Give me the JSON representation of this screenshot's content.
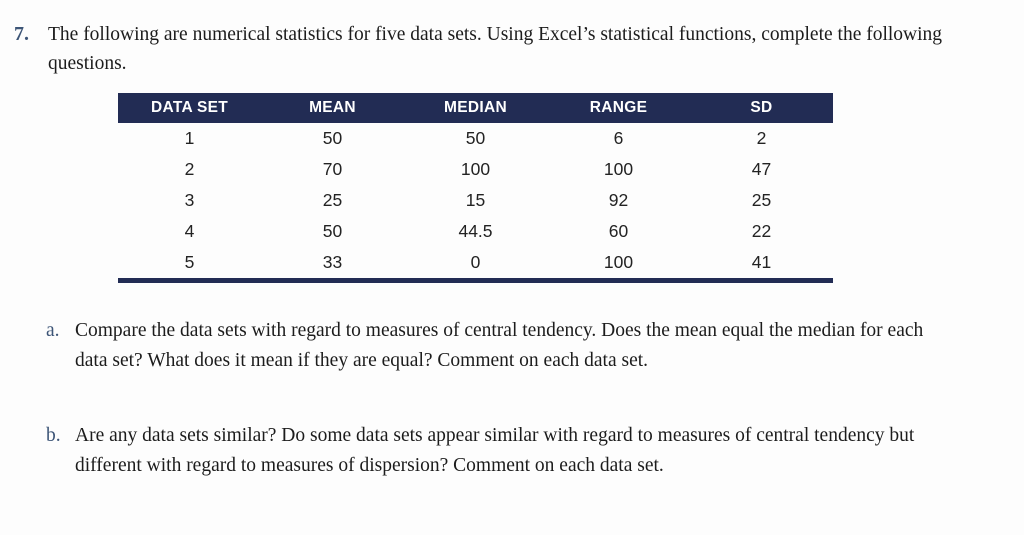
{
  "problem": {
    "number": "7.",
    "text": "The following are numerical statistics for five data sets. Using Excel’s statistical functions, complete the following questions."
  },
  "table": {
    "headers": [
      "DATA SET",
      "MEAN",
      "MEDIAN",
      "RANGE",
      "SD"
    ],
    "rows": [
      [
        "1",
        "50",
        "50",
        "6",
        "2"
      ],
      [
        "2",
        "70",
        "100",
        "100",
        "47"
      ],
      [
        "3",
        "25",
        "15",
        "92",
        "25"
      ],
      [
        "4",
        "50",
        "44.5",
        "60",
        "22"
      ],
      [
        "5",
        "33",
        "0",
        "100",
        "41"
      ]
    ],
    "header_bg_color": "#222c54",
    "header_text_color": "#ffffff",
    "bottom_border_color": "#222c54"
  },
  "sub_questions": {
    "a": {
      "label": "a.",
      "text": "Compare the data sets with regard to measures of central tendency. Does the mean equal the median for each data set? What does it mean if they are equal? Comment on each data set."
    },
    "b": {
      "label": "b.",
      "text": "Are any data sets similar? Do some data sets appear similar with regard to measures of central tendency but different with regard to measures of dispersion? Comment on each data set."
    }
  },
  "accent_color": "#3d5577"
}
